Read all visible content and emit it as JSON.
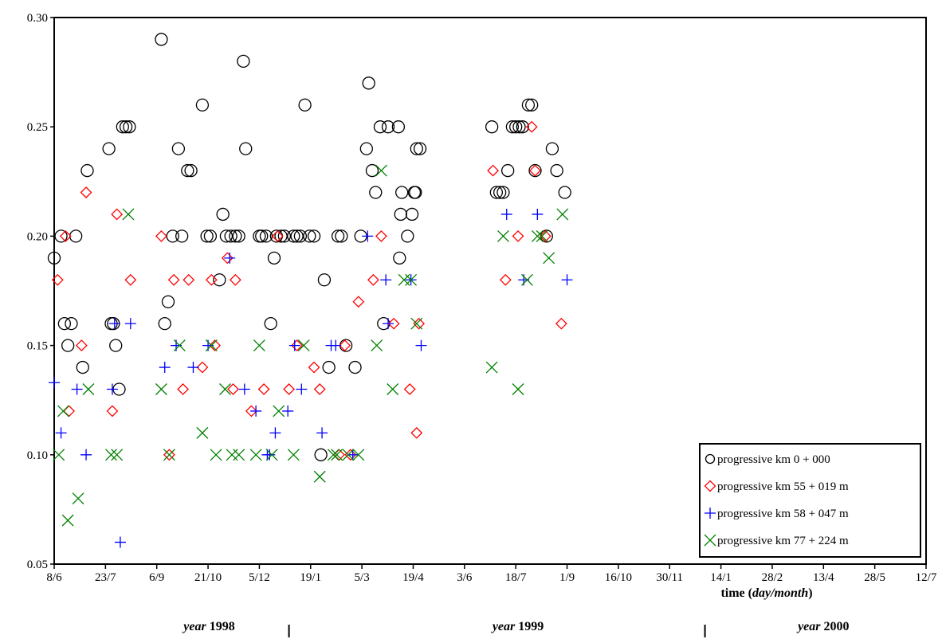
{
  "chart_data": {
    "type": "scatter",
    "title": "",
    "xlabel_prefix": "time (",
    "xlabel_italic": "day/month",
    "xlabel_suffix": ")",
    "ylabel": "",
    "ylim": [
      0.05,
      0.3
    ],
    "y_ticks": [
      "0.05",
      "0.10",
      "0.15",
      "0.20",
      "0.25",
      "0.30"
    ],
    "xlim": [
      "1998-06-08",
      "2000-07-12"
    ],
    "x_ticks": [
      {
        "label": "8/6",
        "date": "1998-06-08"
      },
      {
        "label": "23/7",
        "date": "1998-07-23"
      },
      {
        "label": "6/9",
        "date": "1998-09-06"
      },
      {
        "label": "21/10",
        "date": "1998-10-21"
      },
      {
        "label": "5/12",
        "date": "1998-12-05"
      },
      {
        "label": "19/1",
        "date": "1999-01-19"
      },
      {
        "label": "5/3",
        "date": "1999-03-05"
      },
      {
        "label": "19/4",
        "date": "1999-04-19"
      },
      {
        "label": "3/6",
        "date": "1999-06-03"
      },
      {
        "label": "18/7",
        "date": "1999-07-18"
      },
      {
        "label": "1/9",
        "date": "1999-09-01"
      },
      {
        "label": "16/10",
        "date": "1999-10-16"
      },
      {
        "label": "30/11",
        "date": "1999-11-30"
      },
      {
        "label": "14/1",
        "date": "2000-01-14"
      },
      {
        "label": "28/2",
        "date": "2000-02-28"
      },
      {
        "label": "13/4",
        "date": "2000-04-13"
      },
      {
        "label": "28/5",
        "date": "2000-05-28"
      },
      {
        "label": "12/7",
        "date": "2000-07-12"
      }
    ],
    "years": [
      {
        "italic": "year",
        "bold": "1998",
        "anchor_date": "1998-10-22"
      },
      {
        "italic": "year",
        "bold": "1999",
        "anchor_date": "1999-07-20"
      },
      {
        "italic": "year",
        "bold": "2000",
        "anchor_date": "2000-04-13"
      }
    ],
    "year_dividers": [
      "1998-12-31",
      "1999-12-31"
    ],
    "legend_position": "bottom-right",
    "grid": false,
    "series": [
      {
        "name": "progressive km 0 + 000",
        "marker": "circle",
        "color": "#000000",
        "points": [
          [
            "1998-06-08",
            0.19
          ],
          [
            "1998-06-14",
            0.2
          ],
          [
            "1998-06-17",
            0.16
          ],
          [
            "1998-06-20",
            0.15
          ],
          [
            "1998-06-23",
            0.16
          ],
          [
            "1998-06-27",
            0.2
          ],
          [
            "1998-07-03",
            0.14
          ],
          [
            "1998-07-07",
            0.23
          ],
          [
            "1998-07-26",
            0.24
          ],
          [
            "1998-07-28",
            0.16
          ],
          [
            "1998-07-30",
            0.16
          ],
          [
            "1998-08-01",
            0.15
          ],
          [
            "1998-08-04",
            0.13
          ],
          [
            "1998-08-07",
            0.25
          ],
          [
            "1998-08-10",
            0.25
          ],
          [
            "1998-08-13",
            0.25
          ],
          [
            "1998-09-10",
            0.29
          ],
          [
            "1998-09-13",
            0.16
          ],
          [
            "1998-09-16",
            0.17
          ],
          [
            "1998-09-20",
            0.2
          ],
          [
            "1998-09-25",
            0.24
          ],
          [
            "1998-09-28",
            0.2
          ],
          [
            "1998-10-03",
            0.23
          ],
          [
            "1998-10-06",
            0.23
          ],
          [
            "1998-10-16",
            0.26
          ],
          [
            "1998-10-20",
            0.2
          ],
          [
            "1998-10-23",
            0.2
          ],
          [
            "1998-10-31",
            0.18
          ],
          [
            "1998-11-03",
            0.21
          ],
          [
            "1998-11-06",
            0.2
          ],
          [
            "1998-11-10",
            0.2
          ],
          [
            "1998-11-14",
            0.2
          ],
          [
            "1998-11-17",
            0.2
          ],
          [
            "1998-11-21",
            0.28
          ],
          [
            "1998-11-23",
            0.24
          ],
          [
            "1998-12-05",
            0.2
          ],
          [
            "1998-12-07",
            0.2
          ],
          [
            "1998-12-11",
            0.2
          ],
          [
            "1998-12-15",
            0.16
          ],
          [
            "1998-12-18",
            0.19
          ],
          [
            "1998-12-20",
            0.2
          ],
          [
            "1998-12-24",
            0.2
          ],
          [
            "1998-12-27",
            0.2
          ],
          [
            "1999-01-04",
            0.2
          ],
          [
            "1999-01-07",
            0.2
          ],
          [
            "1999-01-10",
            0.2
          ],
          [
            "1999-01-14",
            0.26
          ],
          [
            "1999-01-18",
            0.2
          ],
          [
            "1999-01-22",
            0.2
          ],
          [
            "1999-01-28",
            0.1
          ],
          [
            "1999-01-31",
            0.18
          ],
          [
            "1999-02-04",
            0.14
          ],
          [
            "1999-02-12",
            0.2
          ],
          [
            "1999-02-15",
            0.2
          ],
          [
            "1999-02-19",
            0.15
          ],
          [
            "1999-02-27",
            0.14
          ],
          [
            "1999-03-04",
            0.2
          ],
          [
            "1999-03-09",
            0.24
          ],
          [
            "1999-03-11",
            0.27
          ],
          [
            "1999-03-14",
            0.23
          ],
          [
            "1999-03-17",
            0.22
          ],
          [
            "1999-03-21",
            0.25
          ],
          [
            "1999-03-24",
            0.16
          ],
          [
            "1999-03-28",
            0.25
          ],
          [
            "1999-04-06",
            0.25
          ],
          [
            "1999-04-07",
            0.19
          ],
          [
            "1999-04-08",
            0.21
          ],
          [
            "1999-04-09",
            0.22
          ],
          [
            "1999-04-14",
            0.2
          ],
          [
            "1999-04-18",
            0.21
          ],
          [
            "1999-04-20",
            0.22
          ],
          [
            "1999-04-21",
            0.22
          ],
          [
            "1999-04-22",
            0.24
          ],
          [
            "1999-04-25",
            0.24
          ],
          [
            "1999-06-27",
            0.25
          ],
          [
            "1999-07-01",
            0.22
          ],
          [
            "1999-07-04",
            0.22
          ],
          [
            "1999-07-07",
            0.22
          ],
          [
            "1999-07-11",
            0.23
          ],
          [
            "1999-07-15",
            0.25
          ],
          [
            "1999-07-18",
            0.25
          ],
          [
            "1999-07-21",
            0.25
          ],
          [
            "1999-07-24",
            0.25
          ],
          [
            "1999-07-29",
            0.26
          ],
          [
            "1999-08-01",
            0.26
          ],
          [
            "1999-08-04",
            0.23
          ],
          [
            "1999-08-14",
            0.2
          ],
          [
            "1999-08-19",
            0.24
          ],
          [
            "1999-08-23",
            0.23
          ],
          [
            "1999-08-30",
            0.22
          ]
        ]
      },
      {
        "name": "progressive km 55 + 019 m",
        "marker": "diamond",
        "color": "#ff0000",
        "points": [
          [
            "1998-06-11",
            0.18
          ],
          [
            "1998-06-18",
            0.2
          ],
          [
            "1998-06-21",
            0.12
          ],
          [
            "1998-07-02",
            0.15
          ],
          [
            "1998-07-06",
            0.22
          ],
          [
            "1998-07-29",
            0.12
          ],
          [
            "1998-08-02",
            0.21
          ],
          [
            "1998-08-14",
            0.18
          ],
          [
            "1998-09-10",
            0.2
          ],
          [
            "1998-09-17",
            0.1
          ],
          [
            "1998-09-21",
            0.18
          ],
          [
            "1998-09-29",
            0.13
          ],
          [
            "1998-10-04",
            0.18
          ],
          [
            "1998-10-16",
            0.14
          ],
          [
            "1998-10-24",
            0.18
          ],
          [
            "1998-10-27",
            0.15
          ],
          [
            "1998-11-07",
            0.19
          ],
          [
            "1998-11-12",
            0.13
          ],
          [
            "1998-11-14",
            0.18
          ],
          [
            "1998-11-28",
            0.12
          ],
          [
            "1998-12-09",
            0.13
          ],
          [
            "1998-12-21",
            0.2
          ],
          [
            "1998-12-31",
            0.13
          ],
          [
            "1999-01-07",
            0.15
          ],
          [
            "1999-01-22",
            0.14
          ],
          [
            "1999-01-27",
            0.13
          ],
          [
            "1999-02-13",
            0.1
          ],
          [
            "1999-02-18",
            0.15
          ],
          [
            "1999-02-23",
            0.1
          ],
          [
            "1999-03-02",
            0.17
          ],
          [
            "1999-03-15",
            0.18
          ],
          [
            "1999-03-22",
            0.2
          ],
          [
            "1999-04-02",
            0.16
          ],
          [
            "1999-04-16",
            0.13
          ],
          [
            "1999-04-22",
            0.11
          ],
          [
            "1999-04-24",
            0.16
          ],
          [
            "1999-06-28",
            0.23
          ],
          [
            "1999-07-09",
            0.18
          ],
          [
            "1999-07-20",
            0.2
          ],
          [
            "1999-08-01",
            0.25
          ],
          [
            "1999-08-04",
            0.23
          ],
          [
            "1999-08-13",
            0.2
          ],
          [
            "1999-08-27",
            0.16
          ]
        ]
      },
      {
        "name": "progressive km 58 + 047 m",
        "marker": "plus",
        "color": "#0000ff",
        "points": [
          [
            "1998-06-08",
            0.133
          ],
          [
            "1998-06-14",
            0.11
          ],
          [
            "1998-06-28",
            0.13
          ],
          [
            "1998-07-06",
            0.1
          ],
          [
            "1998-07-29",
            0.13
          ],
          [
            "1998-07-31",
            0.16
          ],
          [
            "1998-08-05",
            0.06
          ],
          [
            "1998-08-14",
            0.16
          ],
          [
            "1998-09-13",
            0.14
          ],
          [
            "1998-09-23",
            0.15
          ],
          [
            "1998-10-08",
            0.14
          ],
          [
            "1998-10-21",
            0.15
          ],
          [
            "1998-11-09",
            0.19
          ],
          [
            "1998-11-22",
            0.13
          ],
          [
            "1998-12-02",
            0.12
          ],
          [
            "1998-12-12",
            0.1
          ],
          [
            "1998-12-14",
            0.1
          ],
          [
            "1998-12-19",
            0.11
          ],
          [
            "1998-12-30",
            0.12
          ],
          [
            "1999-01-05",
            0.15
          ],
          [
            "1999-01-11",
            0.13
          ],
          [
            "1999-01-29",
            0.11
          ],
          [
            "1999-02-06",
            0.15
          ],
          [
            "1999-02-10",
            0.15
          ],
          [
            "1999-02-25",
            0.1
          ],
          [
            "1999-03-10",
            0.2
          ],
          [
            "1999-03-26",
            0.18
          ],
          [
            "1999-03-28",
            0.16
          ],
          [
            "1999-04-17",
            0.18
          ],
          [
            "1999-04-26",
            0.15
          ],
          [
            "1999-07-10",
            0.21
          ],
          [
            "1999-07-25",
            0.18
          ],
          [
            "1999-08-06",
            0.21
          ],
          [
            "1999-09-01",
            0.18
          ]
        ]
      },
      {
        "name": "progressive km 77 + 224 m",
        "marker": "cross",
        "color": "#008000",
        "points": [
          [
            "1998-06-12",
            0.1
          ],
          [
            "1998-06-16",
            0.12
          ],
          [
            "1998-06-20",
            0.07
          ],
          [
            "1998-06-29",
            0.08
          ],
          [
            "1998-07-08",
            0.13
          ],
          [
            "1998-07-28",
            0.1
          ],
          [
            "1998-08-02",
            0.1
          ],
          [
            "1998-08-12",
            0.21
          ],
          [
            "1998-09-10",
            0.13
          ],
          [
            "1998-09-17",
            0.1
          ],
          [
            "1998-09-26",
            0.15
          ],
          [
            "1998-10-16",
            0.11
          ],
          [
            "1998-10-24",
            0.15
          ],
          [
            "1998-10-28",
            0.1
          ],
          [
            "1998-11-05",
            0.13
          ],
          [
            "1998-11-11",
            0.1
          ],
          [
            "1998-11-17",
            0.1
          ],
          [
            "1998-12-02",
            0.1
          ],
          [
            "1998-12-05",
            0.15
          ],
          [
            "1998-12-16",
            0.1
          ],
          [
            "1998-12-22",
            0.12
          ],
          [
            "1999-01-04",
            0.1
          ],
          [
            "1999-01-13",
            0.15
          ],
          [
            "1999-01-27",
            0.09
          ],
          [
            "1999-02-08",
            0.1
          ],
          [
            "1999-02-11",
            0.1
          ],
          [
            "1999-02-21",
            0.1
          ],
          [
            "1999-03-02",
            0.1
          ],
          [
            "1999-03-18",
            0.15
          ],
          [
            "1999-03-22",
            0.23
          ],
          [
            "1999-04-01",
            0.13
          ],
          [
            "1999-04-11",
            0.18
          ],
          [
            "1999-04-17",
            0.18
          ],
          [
            "1999-04-22",
            0.16
          ],
          [
            "1999-06-27",
            0.14
          ],
          [
            "1999-07-07",
            0.2
          ],
          [
            "1999-07-20",
            0.13
          ],
          [
            "1999-07-28",
            0.18
          ],
          [
            "1999-08-06",
            0.2
          ],
          [
            "1999-08-10",
            0.2
          ],
          [
            "1999-08-16",
            0.19
          ],
          [
            "1999-08-28",
            0.21
          ]
        ]
      }
    ]
  }
}
